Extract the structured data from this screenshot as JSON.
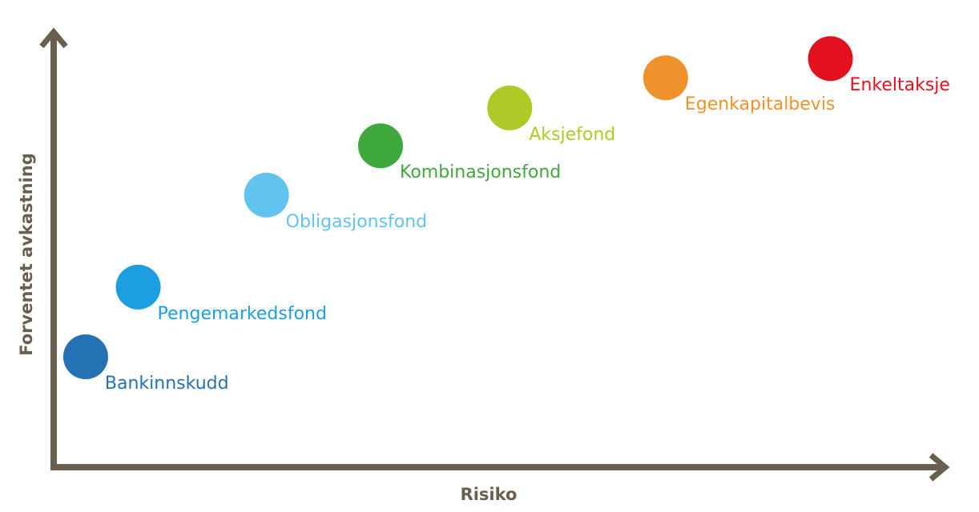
{
  "chart_data": {
    "type": "scatter",
    "title": "",
    "xlabel": "Risiko",
    "ylabel": "Forventet avkastning",
    "xlim": [
      0,
      100
    ],
    "ylim": [
      0,
      100
    ],
    "grid": false,
    "axis_color": "#6a5f4f",
    "points": [
      {
        "label": "Bankinnskudd",
        "x": 3.5,
        "y": 25.5,
        "color": "#2471b4"
      },
      {
        "label": "Pengemarkedsfond",
        "x": 9.4,
        "y": 41.5,
        "color": "#1c9fe0"
      },
      {
        "label": "Obligasjonsfond",
        "x": 23.8,
        "y": 62.6,
        "color": "#62c3ef"
      },
      {
        "label": "Kombinasjonsfond",
        "x": 36.6,
        "y": 73.9,
        "color": "#3fa83c"
      },
      {
        "label": "Aksjefond",
        "x": 51.1,
        "y": 82.6,
        "color": "#b0c927"
      },
      {
        "label": "Egenkapitalbevis",
        "x": 68.6,
        "y": 89.5,
        "color": "#f0922a"
      },
      {
        "label": "Enkeltaksje",
        "x": 87.1,
        "y": 93.9,
        "color": "#e2111f"
      }
    ]
  }
}
